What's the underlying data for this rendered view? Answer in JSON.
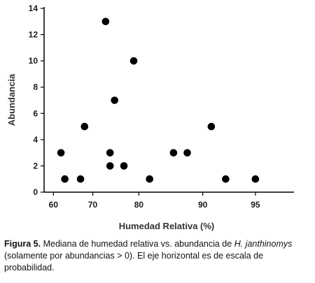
{
  "chart_data": {
    "type": "scatter",
    "title": "",
    "xlabel": "Humedad Relativa (%)",
    "ylabel": "Abundancia",
    "x_scale": "probability",
    "x_ticks": [
      60,
      70,
      80,
      90,
      95
    ],
    "y_ticks": [
      0,
      2,
      4,
      6,
      8,
      10,
      12,
      14
    ],
    "ylim": [
      0,
      14
    ],
    "grid": false,
    "legend": "none",
    "marker_color": "#000000",
    "points": [
      {
        "x": 62,
        "y": 3
      },
      {
        "x": 63,
        "y": 1
      },
      {
        "x": 67,
        "y": 1
      },
      {
        "x": 68,
        "y": 5
      },
      {
        "x": 73,
        "y": 13
      },
      {
        "x": 74,
        "y": 3
      },
      {
        "x": 74,
        "y": 2
      },
      {
        "x": 75,
        "y": 7
      },
      {
        "x": 77,
        "y": 2
      },
      {
        "x": 79,
        "y": 10
      },
      {
        "x": 82,
        "y": 1
      },
      {
        "x": 86,
        "y": 3
      },
      {
        "x": 88,
        "y": 3
      },
      {
        "x": 91,
        "y": 5
      },
      {
        "x": 92.5,
        "y": 1
      },
      {
        "x": 95,
        "y": 1
      }
    ]
  },
  "caption": {
    "label": "Figura 5.",
    "text_before": "Mediana de humedad relativa vs. abundancia de ",
    "species": "H. janthinomys",
    "text_after": " (solamente por abundancias > 0).  El eje horizontal es de escala de probabilidad."
  }
}
